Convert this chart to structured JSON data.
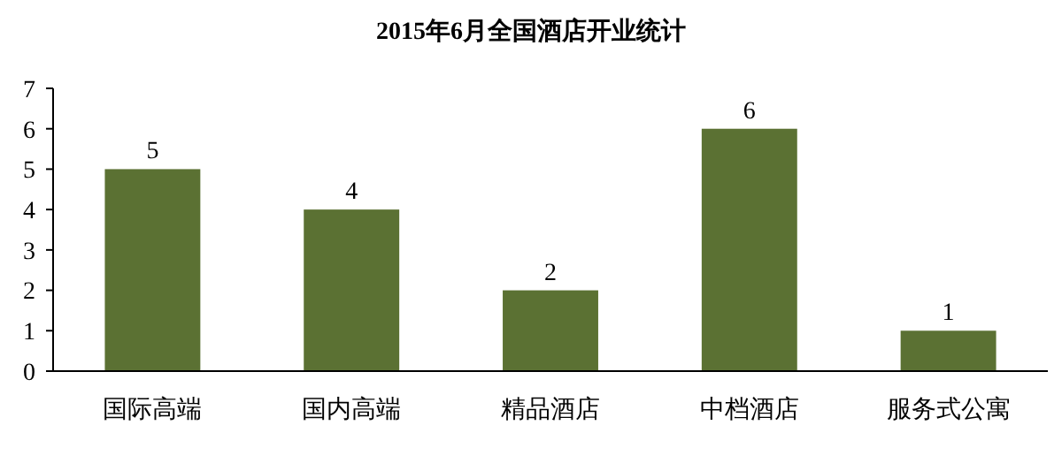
{
  "chart_data": {
    "type": "bar",
    "title": "2015年6月全国酒店开业统计",
    "categories": [
      "国际高端",
      "国内高端",
      "精品酒店",
      "中档酒店",
      "服务式公寓"
    ],
    "values": [
      5,
      4,
      2,
      6,
      1
    ],
    "color": "#5b7133",
    "ylim": [
      0,
      7
    ],
    "yticks": [
      0,
      1,
      2,
      3,
      4,
      5,
      6,
      7
    ],
    "grid": false,
    "data_labels": true
  }
}
